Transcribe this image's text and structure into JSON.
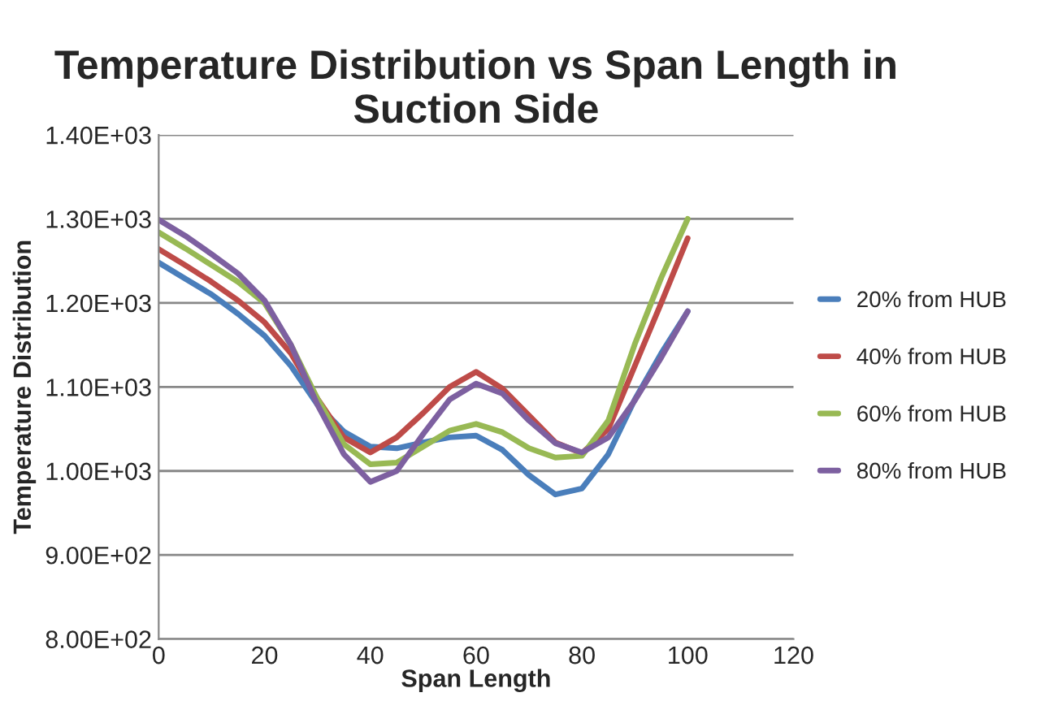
{
  "chart_data": {
    "type": "line",
    "title": "Temperature Distribution vs Span Length in Suction Side",
    "xlabel": "Span Length",
    "ylabel": "Temperature Distribution",
    "x": [
      0,
      5,
      10,
      15,
      20,
      25,
      30,
      35,
      40,
      45,
      50,
      55,
      60,
      65,
      70,
      75,
      80,
      85,
      90,
      95,
      100
    ],
    "series": [
      {
        "name": "20% from HUB",
        "color": "#4a7ebb",
        "values": [
          1248,
          1229,
          1210,
          1187,
          1161,
          1125,
          1079,
          1047,
          1029,
          1027,
          1034,
          1040,
          1042,
          1025,
          995,
          972,
          979,
          1020,
          1085,
          1140,
          1190
        ]
      },
      {
        "name": "40% from HUB",
        "color": "#be4b48",
        "values": [
          1264,
          1245,
          1225,
          1203,
          1177,
          1140,
          1086,
          1040,
          1022,
          1040,
          1069,
          1100,
          1118,
          1098,
          1066,
          1034,
          1021,
          1050,
          1125,
          1200,
          1277
        ]
      },
      {
        "name": "60% from HUB",
        "color": "#98b954",
        "values": [
          1284,
          1265,
          1245,
          1225,
          1200,
          1150,
          1086,
          1032,
          1008,
          1010,
          1029,
          1048,
          1056,
          1046,
          1027,
          1016,
          1018,
          1060,
          1151,
          1230,
          1300
        ]
      },
      {
        "name": "80% from HUB",
        "color": "#7d60a0",
        "values": [
          1299,
          1280,
          1258,
          1235,
          1203,
          1150,
          1079,
          1020,
          987,
          1000,
          1044,
          1085,
          1104,
          1092,
          1060,
          1033,
          1022,
          1040,
          1084,
          1135,
          1190
        ]
      }
    ],
    "xlim": [
      0,
      120
    ],
    "xticks": [
      0,
      20,
      40,
      60,
      80,
      100,
      120
    ],
    "ylim": [
      800,
      1400
    ],
    "yticks": [
      {
        "value": 800,
        "label": "8.00E+02"
      },
      {
        "value": 900,
        "label": "9.00E+02"
      },
      {
        "value": 1000,
        "label": "1.00E+03"
      },
      {
        "value": 1100,
        "label": "1.10E+03"
      },
      {
        "value": 1200,
        "label": "1.20E+03"
      },
      {
        "value": 1300,
        "label": "1.30E+03"
      },
      {
        "value": 1400,
        "label": "1.40E+03"
      }
    ],
    "grid": "y",
    "legend": "right",
    "marker": "none",
    "line_style": "solid"
  }
}
